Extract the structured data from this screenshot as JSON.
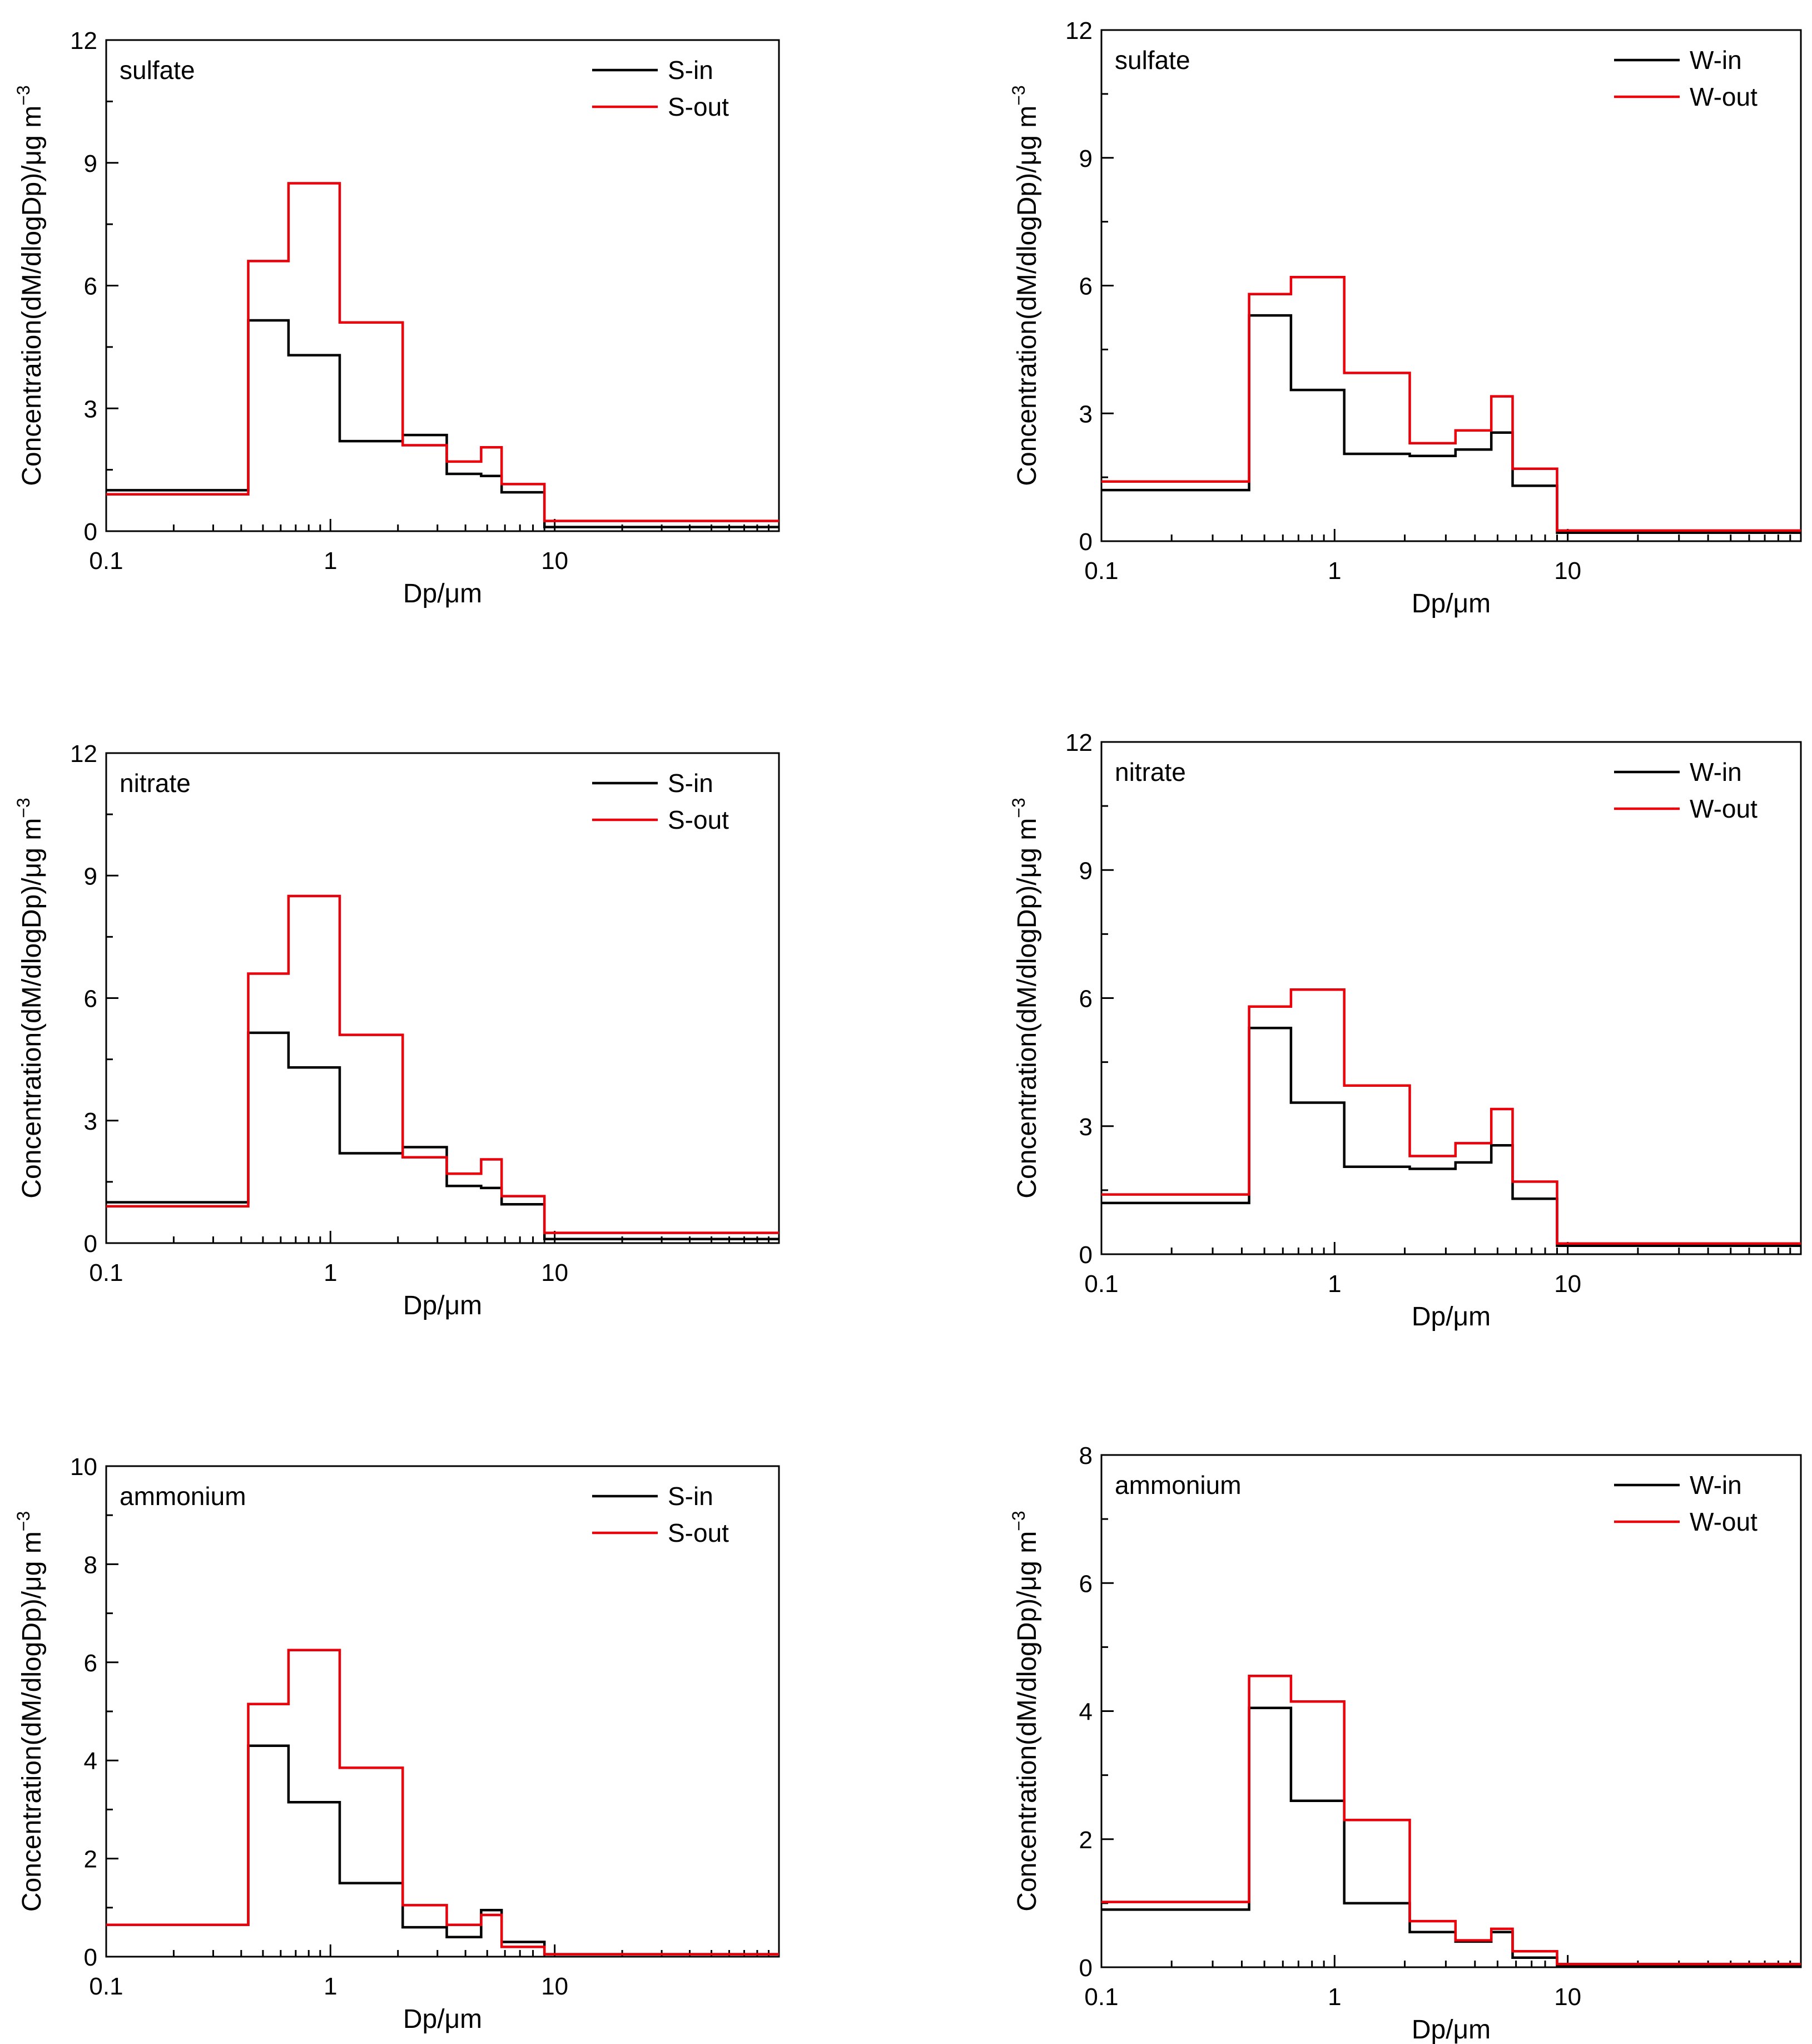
{
  "figure": {
    "description_free": true
  },
  "chart_data": [
    {
      "type": "line",
      "step": true,
      "panel_label": "sulfate",
      "xlabel": "Dp/μm",
      "ylabel": "Concentration(dM/dlogDp)/μg m",
      "ylabel_superscript": "−3",
      "xscale": "log",
      "xlim": [
        0.1,
        100
      ],
      "xticks": [
        0.1,
        1,
        10
      ],
      "xtick_labels": [
        "0.1",
        "1",
        "10"
      ],
      "ylim": [
        0,
        12
      ],
      "yticks": [
        0,
        3,
        6,
        9,
        12
      ],
      "ytick_labels": [
        "0",
        "3",
        "6",
        "9",
        "12"
      ],
      "legend": {
        "position": "top-right",
        "entries": [
          "S-in",
          "S-out"
        ]
      },
      "edges": [
        0.1,
        0.43,
        0.65,
        1.1,
        2.1,
        3.3,
        4.7,
        5.8,
        9.0,
        100
      ],
      "series": [
        {
          "name": "S-in",
          "color": "#000000",
          "values": [
            1.0,
            5.15,
            4.3,
            2.2,
            2.35,
            1.4,
            1.35,
            0.95,
            0.1
          ]
        },
        {
          "name": "S-out",
          "color": "#e8000b",
          "values": [
            0.9,
            6.6,
            8.5,
            5.1,
            2.1,
            1.7,
            2.05,
            1.15,
            0.25
          ]
        }
      ]
    },
    {
      "type": "line",
      "step": true,
      "panel_label": "sulfate",
      "xlabel": "Dp/μm",
      "ylabel": "Concentration(dM/dlogDp)/μg m",
      "ylabel_superscript": "−3",
      "xscale": "log",
      "xlim": [
        0.1,
        100
      ],
      "xticks": [
        0.1,
        1,
        10
      ],
      "xtick_labels": [
        "0.1",
        "1",
        "10"
      ],
      "ylim": [
        0,
        12
      ],
      "yticks": [
        0,
        3,
        6,
        9,
        12
      ],
      "ytick_labels": [
        "0",
        "3",
        "6",
        "9",
        "12"
      ],
      "legend": {
        "position": "top-right",
        "entries": [
          "W-in",
          "W-out"
        ]
      },
      "edges": [
        0.1,
        0.43,
        0.65,
        1.1,
        2.1,
        3.3,
        4.7,
        5.8,
        9.0,
        100
      ],
      "series": [
        {
          "name": "W-in",
          "color": "#000000",
          "values": [
            1.2,
            5.3,
            3.55,
            2.05,
            2.0,
            2.15,
            2.55,
            1.3,
            0.2
          ]
        },
        {
          "name": "W-out",
          "color": "#e8000b",
          "values": [
            1.4,
            5.8,
            6.2,
            3.95,
            2.3,
            2.6,
            3.4,
            1.7,
            0.25
          ]
        }
      ]
    },
    {
      "type": "line",
      "step": true,
      "panel_label": "nitrate",
      "xlabel": "Dp/μm",
      "ylabel": "Concentration(dM/dlogDp)/μg m",
      "ylabel_superscript": "−3",
      "xscale": "log",
      "xlim": [
        0.1,
        100
      ],
      "xticks": [
        0.1,
        1,
        10
      ],
      "xtick_labels": [
        "0.1",
        "1",
        "10"
      ],
      "ylim": [
        0,
        12
      ],
      "yticks": [
        0,
        3,
        6,
        9,
        12
      ],
      "ytick_labels": [
        "0",
        "3",
        "6",
        "9",
        "12"
      ],
      "legend": {
        "position": "top-right",
        "entries": [
          "S-in",
          "S-out"
        ]
      },
      "edges": [
        0.1,
        0.43,
        0.65,
        1.1,
        2.1,
        3.3,
        4.7,
        5.8,
        9.0,
        100
      ],
      "series": [
        {
          "name": "S-in",
          "color": "#000000",
          "values": [
            1.0,
            5.15,
            4.3,
            2.2,
            2.35,
            1.4,
            1.35,
            0.95,
            0.1
          ]
        },
        {
          "name": "S-out",
          "color": "#e8000b",
          "values": [
            0.9,
            6.6,
            8.5,
            5.1,
            2.1,
            1.7,
            2.05,
            1.15,
            0.25
          ]
        }
      ]
    },
    {
      "type": "line",
      "step": true,
      "panel_label": "nitrate",
      "xlabel": "Dp/μm",
      "ylabel": "Concentration(dM/dlogDp)/μg m",
      "ylabel_superscript": "−3",
      "xscale": "log",
      "xlim": [
        0.1,
        100
      ],
      "xticks": [
        0.1,
        1,
        10
      ],
      "xtick_labels": [
        "0.1",
        "1",
        "10"
      ],
      "ylim": [
        0,
        12
      ],
      "yticks": [
        0,
        3,
        6,
        9,
        12
      ],
      "ytick_labels": [
        "0",
        "3",
        "6",
        "9",
        "12"
      ],
      "legend": {
        "position": "top-right",
        "entries": [
          "W-in",
          "W-out"
        ]
      },
      "edges": [
        0.1,
        0.43,
        0.65,
        1.1,
        2.1,
        3.3,
        4.7,
        5.8,
        9.0,
        100
      ],
      "series": [
        {
          "name": "W-in",
          "color": "#000000",
          "values": [
            1.2,
            5.3,
            3.55,
            2.05,
            2.0,
            2.15,
            2.55,
            1.3,
            0.2
          ]
        },
        {
          "name": "W-out",
          "color": "#e8000b",
          "values": [
            1.4,
            5.8,
            6.2,
            3.95,
            2.3,
            2.6,
            3.4,
            1.7,
            0.25
          ]
        }
      ]
    },
    {
      "type": "line",
      "step": true,
      "panel_label": "ammonium",
      "xlabel": "Dp/μm",
      "ylabel": "Concentration(dM/dlogDp)/μg m",
      "ylabel_superscript": "−3",
      "xscale": "log",
      "xlim": [
        0.1,
        100
      ],
      "xticks": [
        0.1,
        1,
        10
      ],
      "xtick_labels": [
        "0.1",
        "1",
        "10"
      ],
      "ylim": [
        0,
        10
      ],
      "yticks": [
        0,
        2,
        4,
        6,
        8,
        10
      ],
      "ytick_labels": [
        "0",
        "2",
        "4",
        "6",
        "8",
        "10"
      ],
      "legend": {
        "position": "top-right",
        "entries": [
          "S-in",
          "S-out"
        ]
      },
      "edges": [
        0.1,
        0.43,
        0.65,
        1.1,
        2.1,
        3.3,
        4.7,
        5.8,
        9.0,
        100
      ],
      "series": [
        {
          "name": "S-in",
          "color": "#000000",
          "values": [
            0.65,
            4.3,
            3.15,
            1.5,
            0.6,
            0.4,
            0.95,
            0.3,
            0.05
          ]
        },
        {
          "name": "S-out",
          "color": "#e8000b",
          "values": [
            0.65,
            5.15,
            6.25,
            3.85,
            1.05,
            0.65,
            0.85,
            0.2,
            0.05
          ]
        }
      ]
    },
    {
      "type": "line",
      "step": true,
      "panel_label": "ammonium",
      "xlabel": "Dp/μm",
      "ylabel": "Concentration(dM/dlogDp)/μg m",
      "ylabel_superscript": "−3",
      "xscale": "log",
      "xlim": [
        0.1,
        100
      ],
      "xticks": [
        0.1,
        1,
        10
      ],
      "xtick_labels": [
        "0.1",
        "1",
        "10"
      ],
      "ylim": [
        0,
        8
      ],
      "yticks": [
        0,
        2,
        4,
        6,
        8
      ],
      "ytick_labels": [
        "0",
        "2",
        "4",
        "6",
        "8"
      ],
      "legend": {
        "position": "top-right",
        "entries": [
          "W-in",
          "W-out"
        ]
      },
      "edges": [
        0.1,
        0.43,
        0.65,
        1.1,
        2.1,
        3.3,
        4.7,
        5.8,
        9.0,
        100
      ],
      "series": [
        {
          "name": "W-in",
          "color": "#000000",
          "values": [
            0.9,
            4.05,
            2.6,
            1.0,
            0.55,
            0.4,
            0.55,
            0.15,
            0.02
          ]
        },
        {
          "name": "W-out",
          "color": "#e8000b",
          "values": [
            1.02,
            4.55,
            4.15,
            2.3,
            0.72,
            0.42,
            0.6,
            0.25,
            0.05
          ]
        }
      ]
    }
  ]
}
